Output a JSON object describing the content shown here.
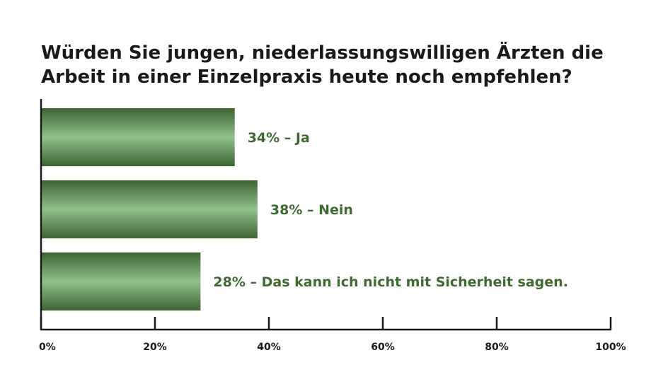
{
  "chart_data": {
    "type": "bar",
    "orientation": "horizontal",
    "title": "Würden Sie jungen, niederlassungswilligen Ärzten die Arbeit in einer Einzelpraxis heute noch empfehlen?",
    "categories": [
      "Ja",
      "Nein",
      "Das kann ich nicht mit Sicherheit sagen."
    ],
    "values": [
      34,
      38,
      28
    ],
    "bar_labels": [
      "34% – Ja",
      "38% – Nein",
      "28% – Das kann ich nicht mit Sicherheit sagen."
    ],
    "xlim": [
      0,
      100
    ],
    "xticks": [
      0,
      20,
      40,
      60,
      80,
      100
    ],
    "xtick_labels": [
      "0%",
      "20%",
      "40%",
      "60%",
      "80%",
      "100%"
    ],
    "grid": false,
    "colors": {
      "bar_dark": "#3d6331",
      "bar_light": "#8fc28a",
      "label": "#3f6b33",
      "axis": "#1a1a1a"
    }
  }
}
